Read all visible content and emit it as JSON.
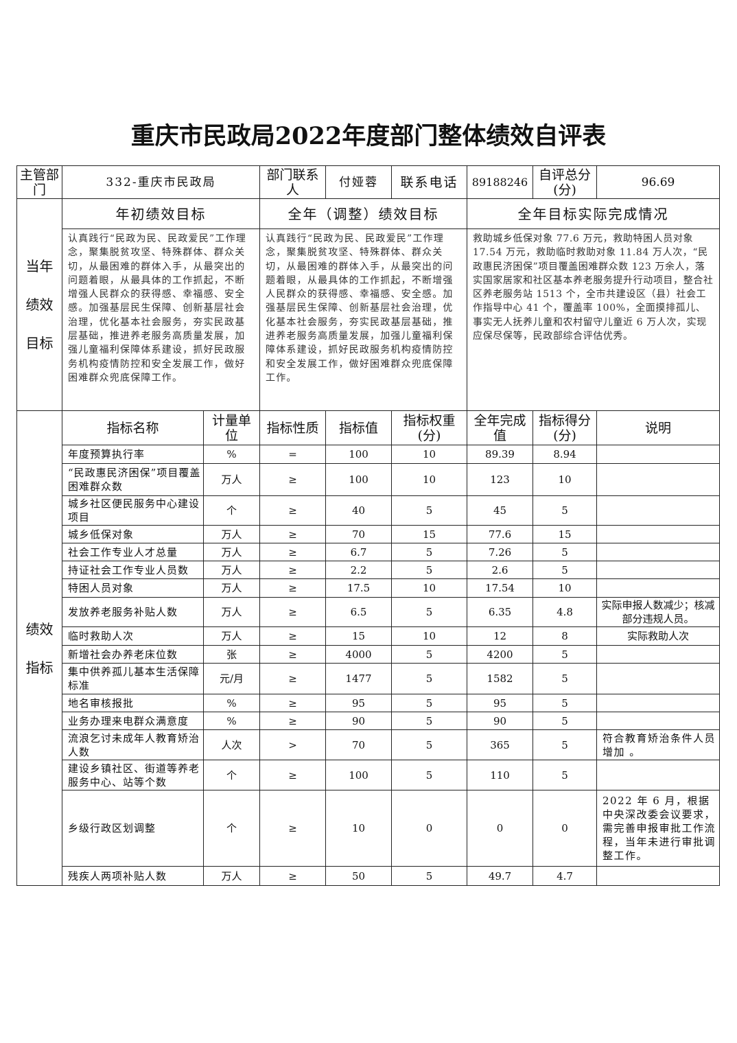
{
  "title": "重庆市民政局2022年度部门整体绩效自评表",
  "header": {
    "dept_label": "主管部门",
    "dept_value": "332-重庆市民政局",
    "contact_label": "部门联系人",
    "contact_value": "付娅蓉",
    "phone_label": "联系电话",
    "phone_value": "89188246",
    "score_label": "自评总分(分)",
    "score_value": "96.69"
  },
  "goals": {
    "side_label": [
      "当年",
      "绩效",
      "目标"
    ],
    "initial_heading": "年初绩效目标",
    "adjusted_heading": "全年（调整）绩效目标",
    "actual_heading": "全年目标实际完成情况",
    "initial_text": "认真践行“民政为民、民政爱民”工作理念，聚集脱贫攻坚、特殊群体、群众关切，从最困难的群体入手，从最突出的问题着眼，从最具体的工作抓起，不断增强人民群众的获得感、幸福感、安全感。加强基层民生保障、创新基层社会治理，优化基本社会服务，夯实民政基层基础，推进养老服务高质量发展，加强儿童福利保障体系建设，抓好民政服务机构疫情防控和安全发展工作，做好困难群众兜底保障工作。",
    "adjusted_text": "认真践行“民政为民、民政爱民”工作理念，聚集脱贫攻坚、特殊群体、群众关切，从最困难的群体入手，从最突出的问题着眼，从最具体的工作抓起，不断增强人民群众的获得感、幸福感、安全感。加强基层民生保障、创新基层社会治理，优化基本社会服务，夯实民政基层基础，推进养老服务高质量发展，加强儿童福利保障体系建设，抓好民政服务机构疫情防控和安全发展工作，做好困难群众兜底保障工作。",
    "actual_text": "救助城乡低保对象 77.6 万元，救助特困人员对象 17.54 万元，救助临时救助对象 11.84 万人次，“民政惠民济困保”项目覆盖困难群众数 123 万余人，落实国家居家和社区基本养老服务提升行动项目，整合社区养老服务站 1513 个，全市共建设区（县）社会工作指导中心 41 个，覆盖率 100%，全面摸排孤儿、事实无人抚养儿童和农村留守儿童近 6 万人次，实现应保尽保等，民政部综合评估优秀。"
  },
  "indicators": {
    "side_label": [
      "绩效",
      "指标"
    ],
    "columns": [
      "指标名称",
      "计量单位",
      "指标性质",
      "指标值",
      "指标权重(分)",
      "全年完成值",
      "指标得分(分)",
      "说明"
    ],
    "rows": [
      [
        "年度预算执行率",
        "%",
        "=",
        "100",
        "10",
        "89.39",
        "8.94",
        ""
      ],
      [
        "“民政惠民济困保”项目覆盖困难群众数",
        "万人",
        "≥",
        "100",
        "10",
        "123",
        "10",
        ""
      ],
      [
        "城乡社区便民服务中心建设项目",
        "个",
        "≥",
        "40",
        "5",
        "45",
        "5",
        ""
      ],
      [
        "城乡低保对象",
        "万人",
        "≥",
        "70",
        "15",
        "77.6",
        "15",
        ""
      ],
      [
        "社会工作专业人才总量",
        "万人",
        "≥",
        "6.7",
        "5",
        "7.26",
        "5",
        ""
      ],
      [
        "持证社会工作专业人员数",
        "万人",
        "≥",
        "2.2",
        "5",
        "2.6",
        "5",
        ""
      ],
      [
        "特困人员对象",
        "万人",
        "≥",
        "17.5",
        "10",
        "17.54",
        "10",
        ""
      ],
      [
        "发放养老服务补贴人数",
        "万人",
        "≥",
        "6.5",
        "5",
        "6.35",
        "4.8",
        "实际申报人数减少；核减部分违规人员。"
      ],
      [
        "临时救助人次",
        "万人",
        "≥",
        "15",
        "10",
        "12",
        "8",
        "实际救助人次"
      ],
      [
        "新增社会办养老床位数",
        "张",
        "≥",
        "4000",
        "5",
        "4200",
        "5",
        ""
      ],
      [
        "集中供养孤儿基本生活保障标准",
        "元/月",
        "≥",
        "1477",
        "5",
        "1582",
        "5",
        ""
      ],
      [
        "地名审核报批",
        "%",
        "≥",
        "95",
        "5",
        "95",
        "5",
        ""
      ],
      [
        "业务办理来电群众满意度",
        "%",
        "≥",
        "90",
        "5",
        "90",
        "5",
        ""
      ],
      [
        "流浪乞讨未成年人教育矫治人数",
        "人次",
        ">",
        "70",
        "5",
        "365",
        "5",
        "符合教育矫治条件人员增加 。"
      ],
      [
        "建设乡镇社区、街道等养老服务中心、站等个数",
        "个",
        "≥",
        "100",
        "5",
        "110",
        "5",
        ""
      ],
      [
        "乡级行政区划调整",
        "个",
        "≥",
        "10",
        "0",
        "0",
        "0",
        "2022 年 6 月，根据中央深改委会议要求，需完善申报审批工作流程，当年未进行审批调整工作。"
      ],
      [
        "残疾人两项补贴人数",
        "万人",
        "≥",
        "50",
        "5",
        "49.7",
        "4.7",
        ""
      ]
    ]
  }
}
